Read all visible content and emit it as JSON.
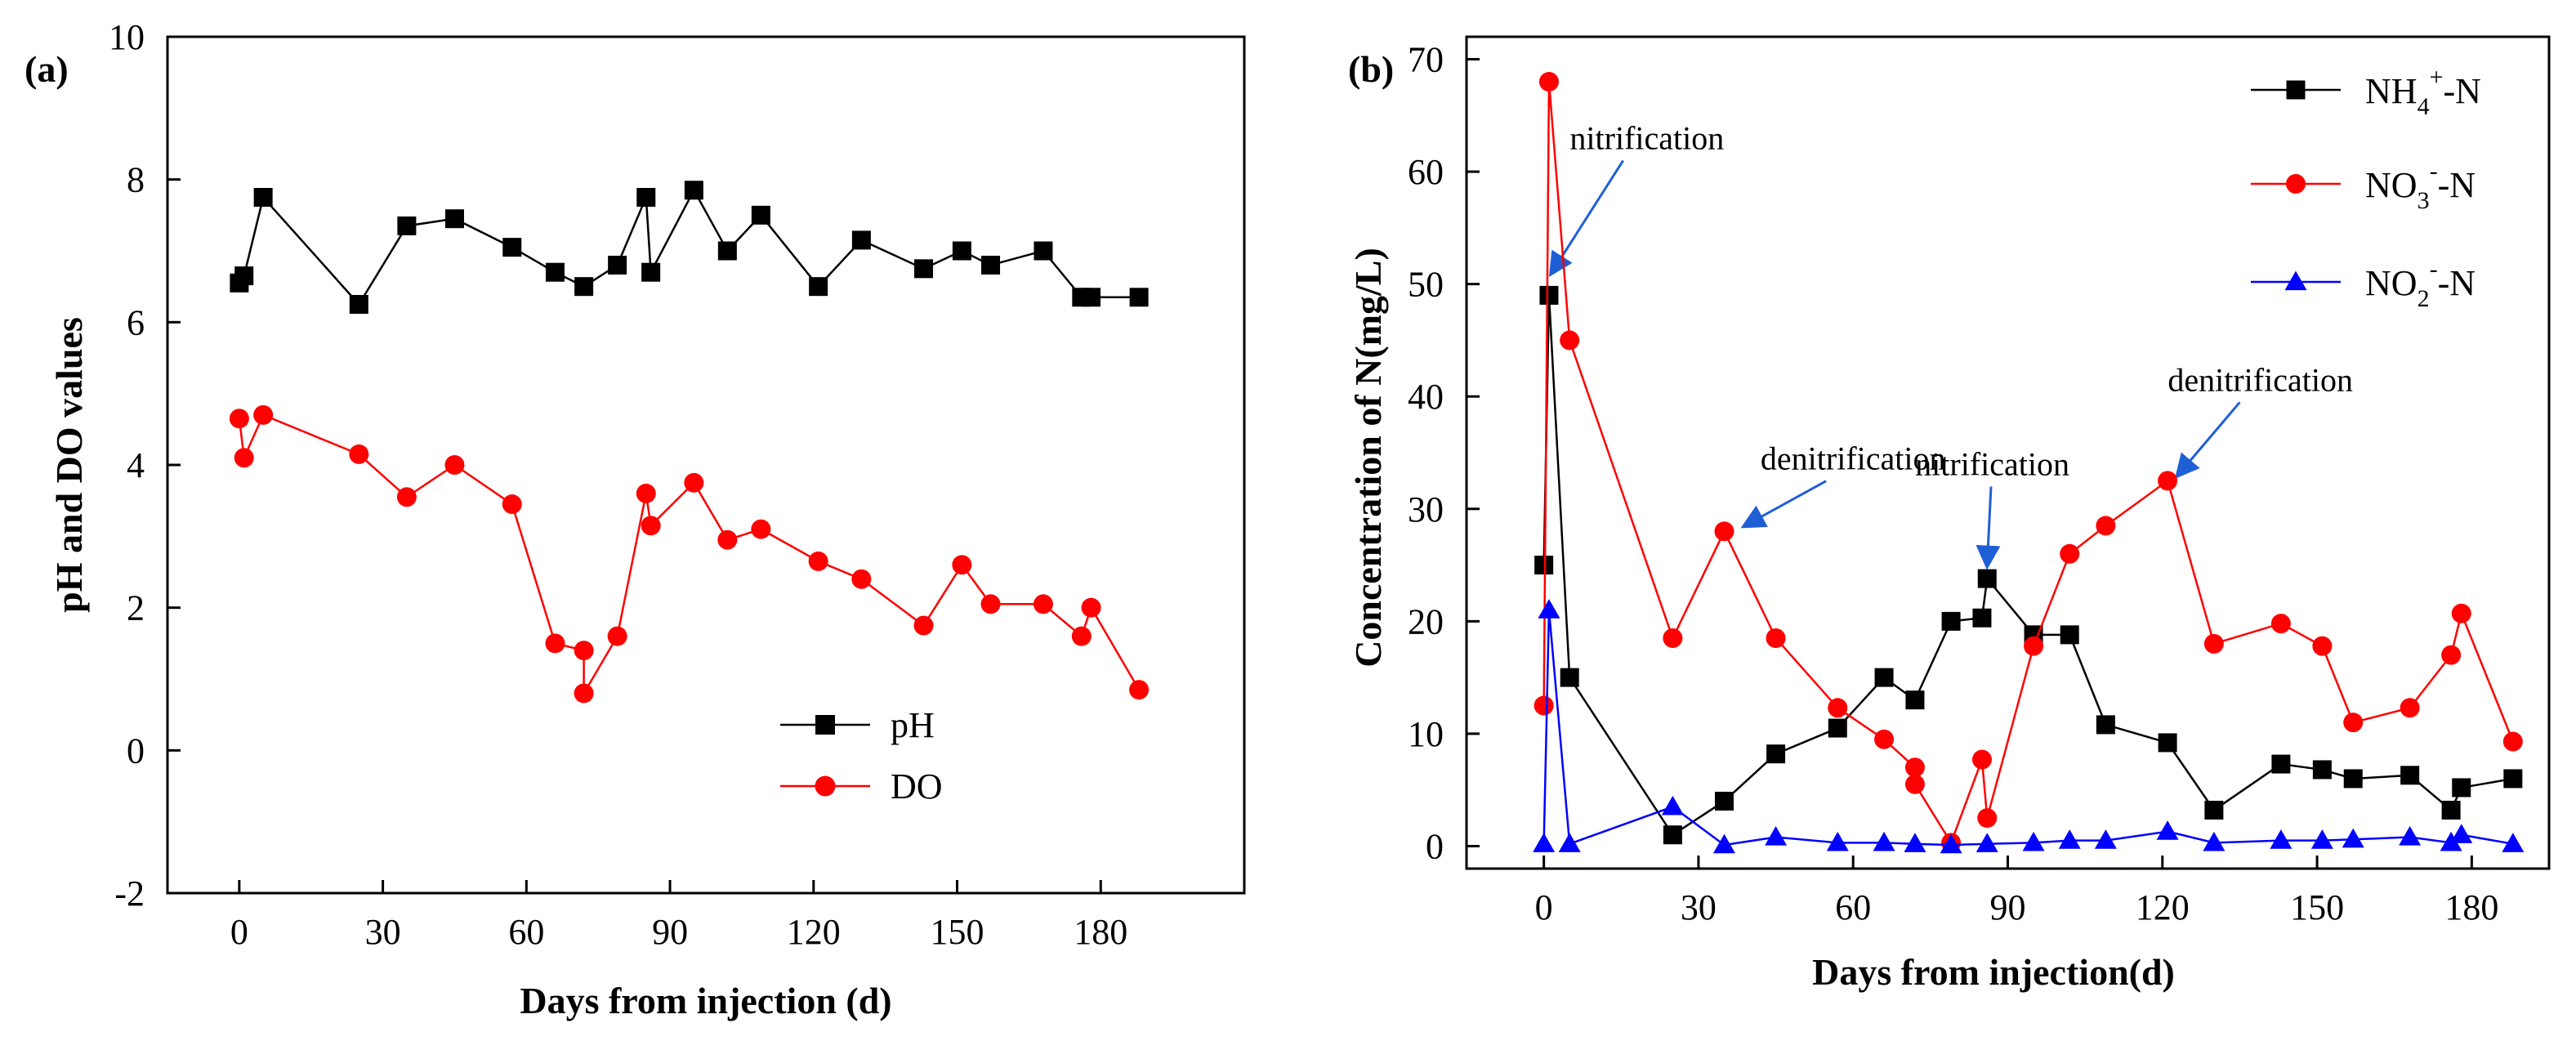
{
  "chart_data": [
    {
      "type": "line",
      "panel_label": "(a)",
      "xlabel": "Days from injection (d)",
      "ylabel": "pH and DO values",
      "xlim": [
        -15,
        210
      ],
      "ylim": [
        -2,
        10
      ],
      "xticks": [
        0,
        30,
        60,
        90,
        120,
        150,
        180
      ],
      "yticks": [
        -2,
        0,
        2,
        4,
        6,
        8,
        10
      ],
      "xtick_labels": [
        "0",
        "30",
        "60",
        "90",
        "120",
        "150",
        "180"
      ],
      "ytick_labels": [
        "-2",
        "0",
        "2",
        "4",
        "6",
        "8",
        "10"
      ],
      "legend_position": "bottom-right",
      "series": [
        {
          "name": "pH",
          "color": "#000000",
          "marker": "square",
          "x": [
            0,
            1,
            5,
            25,
            35,
            45,
            57,
            66,
            72,
            79,
            85,
            86,
            95,
            102,
            109,
            121,
            130,
            143,
            151,
            157,
            168,
            176,
            178,
            188
          ],
          "y": [
            6.55,
            6.65,
            7.75,
            6.25,
            7.35,
            7.45,
            7.05,
            6.7,
            6.5,
            6.8,
            7.75,
            6.7,
            7.85,
            7.0,
            7.5,
            6.5,
            7.15,
            6.75,
            7.0,
            6.8,
            7.0,
            6.35,
            6.35,
            6.35
          ]
        },
        {
          "name": "DO",
          "color": "#ff0000",
          "marker": "circle",
          "x": [
            0,
            1,
            5,
            25,
            35,
            45,
            57,
            66,
            72,
            72,
            79,
            85,
            86,
            95,
            102,
            109,
            121,
            130,
            143,
            151,
            157,
            168,
            176,
            178,
            188
          ],
          "y": [
            4.65,
            4.1,
            4.7,
            4.15,
            3.55,
            4.0,
            3.45,
            1.5,
            1.4,
            0.8,
            1.6,
            3.6,
            3.15,
            3.75,
            2.95,
            3.1,
            2.65,
            2.4,
            1.75,
            2.6,
            2.05,
            2.05,
            1.6,
            2.0,
            0.85
          ]
        }
      ]
    },
    {
      "type": "line",
      "panel_label": "(b)",
      "xlabel": "Days from injection(d)",
      "ylabel": "Concentration of N(mg/L)",
      "xlim": [
        -15,
        195
      ],
      "ylim": [
        -2,
        72
      ],
      "xticks": [
        0,
        30,
        60,
        90,
        120,
        150,
        180
      ],
      "yticks": [
        0,
        10,
        20,
        30,
        40,
        50,
        60,
        70
      ],
      "xtick_labels": [
        "0",
        "30",
        "60",
        "90",
        "120",
        "150",
        "180"
      ],
      "ytick_labels": [
        "0",
        "10",
        "20",
        "30",
        "40",
        "50",
        "60",
        "70"
      ],
      "legend_position": "top-right",
      "legend": [
        {
          "base": "NH",
          "sub": "4",
          "sup": "+",
          "tail": "-N"
        },
        {
          "base": "NO",
          "sub": "3",
          "sup": "-",
          "tail": "-N"
        },
        {
          "base": "NO",
          "sub": "2",
          "sup": "-",
          "tail": "-N"
        }
      ],
      "annotations": [
        {
          "text": "nitrification",
          "x": 20,
          "y": 62,
          "arrow_to_x": 1.5,
          "arrow_to_y": 51
        },
        {
          "text": "denitrification",
          "x": 60,
          "y": 33.5,
          "arrow_to_x": 39,
          "arrow_to_y": 28.5
        },
        {
          "text": "nitrification",
          "x": 87,
          "y": 33,
          "arrow_to_x": 86,
          "arrow_to_y": 25
        },
        {
          "text": "denitrification",
          "x": 139,
          "y": 40.5,
          "arrow_to_x": 123,
          "arrow_to_y": 33
        }
      ],
      "series": [
        {
          "name": "NH4+-N",
          "color": "#000000",
          "marker": "square",
          "x": [
            0,
            1,
            5,
            25,
            35,
            45,
            57,
            66,
            72,
            79,
            85,
            86,
            95,
            102,
            109,
            121,
            130,
            143,
            151,
            157,
            168,
            176,
            178,
            188
          ],
          "y": [
            25,
            49,
            15,
            1,
            4,
            8.2,
            10.5,
            15,
            13,
            20,
            20.3,
            23.8,
            18.8,
            18.8,
            10.8,
            9.2,
            3.2,
            7.3,
            6.8,
            6,
            6.3,
            3.2,
            5.2,
            6
          ]
        },
        {
          "name": "NO3--N",
          "color": "#ff0000",
          "marker": "circle",
          "x": [
            0,
            1,
            5,
            25,
            35,
            45,
            57,
            66,
            72,
            72,
            79,
            85,
            86,
            95,
            102,
            109,
            121,
            130,
            143,
            151,
            157,
            168,
            176,
            178,
            188
          ],
          "y": [
            12.5,
            68,
            45,
            18.5,
            28,
            18.5,
            12.3,
            9.5,
            7,
            5.5,
            0.3,
            7.7,
            2.5,
            17.8,
            26,
            28.5,
            32.5,
            18,
            19.8,
            17.8,
            11,
            12.3,
            17,
            20.7,
            9.3
          ]
        },
        {
          "name": "NO2--N",
          "color": "#0000ff",
          "marker": "triangle",
          "x": [
            0,
            1,
            5,
            25,
            35,
            45,
            57,
            66,
            72,
            79,
            86,
            95,
            102,
            109,
            121,
            130,
            143,
            151,
            157,
            168,
            176,
            178,
            188
          ],
          "y": [
            0.2,
            21,
            0.2,
            3.5,
            0.1,
            0.8,
            0.3,
            0.3,
            0.2,
            0.1,
            0.2,
            0.3,
            0.5,
            0.5,
            1.3,
            0.3,
            0.5,
            0.5,
            0.6,
            0.8,
            0.3,
            1,
            0.2
          ]
        }
      ]
    }
  ]
}
